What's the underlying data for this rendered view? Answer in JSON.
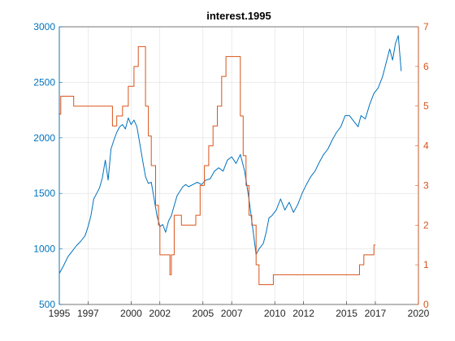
{
  "chart_data": {
    "type": "line",
    "title": "interest.1995",
    "xlabel": "",
    "grid": true,
    "x_axis": {
      "range": [
        1995,
        2020
      ],
      "ticks": [
        1995,
        1997,
        2000,
        2002,
        2005,
        2007,
        2010,
        2012,
        2015,
        2017,
        2020
      ],
      "tick_labels": [
        "1995",
        "1997",
        "2000",
        "2002",
        "2005",
        "2007",
        "2010",
        "2012",
        "2015",
        "2017",
        "2020"
      ]
    },
    "y_left": {
      "color": "#0072BD",
      "range": [
        500,
        3000
      ],
      "ticks": [
        500,
        1000,
        1500,
        2000,
        2500,
        3000
      ],
      "tick_labels": [
        "500",
        "1000",
        "1500",
        "2000",
        "2500",
        "3000"
      ]
    },
    "y_right": {
      "color": "#D95319",
      "range": [
        0,
        7
      ],
      "ticks": [
        0,
        1,
        2,
        3,
        4,
        5,
        6,
        7
      ],
      "tick_labels": [
        "0",
        "1",
        "2",
        "3",
        "4",
        "5",
        "6",
        "7"
      ]
    },
    "series": [
      {
        "axis": "left",
        "color": "#0072BD",
        "style": "line",
        "x": [
          1995.0,
          1995.3,
          1995.6,
          1995.9,
          1996.2,
          1996.5,
          1996.8,
          1997.0,
          1997.2,
          1997.4,
          1997.6,
          1997.8,
          1998.0,
          1998.2,
          1998.4,
          1998.6,
          1998.8,
          1999.0,
          1999.2,
          1999.4,
          1999.6,
          1999.8,
          2000.0,
          2000.2,
          2000.4,
          2000.6,
          2000.8,
          2001.0,
          2001.2,
          2001.4,
          2001.6,
          2001.8,
          2002.0,
          2002.2,
          2002.4,
          2002.6,
          2002.8,
          2003.0,
          2003.2,
          2003.4,
          2003.6,
          2003.8,
          2004.0,
          2004.3,
          2004.6,
          2004.9,
          2005.2,
          2005.5,
          2005.8,
          2006.1,
          2006.4,
          2006.7,
          2007.0,
          2007.3,
          2007.6,
          2007.9,
          2008.2,
          2008.5,
          2008.7,
          2008.9,
          2009.2,
          2009.4,
          2009.6,
          2009.8,
          2010.1,
          2010.4,
          2010.7,
          2011.0,
          2011.3,
          2011.6,
          2011.9,
          2012.2,
          2012.5,
          2012.8,
          2013.1,
          2013.4,
          2013.7,
          2014.0,
          2014.3,
          2014.6,
          2014.9,
          2015.2,
          2015.5,
          2015.8,
          2016.0,
          2016.3,
          2016.6,
          2016.9,
          2017.2,
          2017.5,
          2017.8,
          2018.0,
          2018.2,
          2018.4,
          2018.6,
          2018.8
        ],
        "values": [
          780,
          850,
          930,
          980,
          1030,
          1070,
          1120,
          1200,
          1300,
          1450,
          1500,
          1550,
          1640,
          1800,
          1620,
          1900,
          1980,
          2050,
          2100,
          2120,
          2080,
          2180,
          2120,
          2160,
          2100,
          1950,
          1800,
          1650,
          1590,
          1600,
          1450,
          1300,
          1200,
          1220,
          1150,
          1250,
          1300,
          1390,
          1480,
          1520,
          1560,
          1580,
          1560,
          1580,
          1600,
          1580,
          1620,
          1630,
          1700,
          1730,
          1700,
          1800,
          1830,
          1770,
          1850,
          1700,
          1450,
          1150,
          950,
          1000,
          1050,
          1150,
          1280,
          1300,
          1350,
          1450,
          1350,
          1420,
          1330,
          1400,
          1500,
          1580,
          1650,
          1700,
          1780,
          1850,
          1900,
          1980,
          2050,
          2100,
          2200,
          2200,
          2150,
          2100,
          2200,
          2170,
          2300,
          2400,
          2450,
          2550,
          2700,
          2800,
          2700,
          2850,
          2920,
          2600
        ]
      },
      {
        "axis": "right",
        "color": "#D95319",
        "style": "step",
        "x": [
          1995.0,
          1995.1,
          1996.0,
          1998.7,
          1999.0,
          1999.4,
          1999.8,
          2000.2,
          2000.5,
          2001.0,
          2001.2,
          2001.4,
          2001.7,
          2001.9,
          2002.0,
          2002.7,
          2002.8,
          2003.0,
          2003.5,
          2004.5,
          2004.8,
          2005.1,
          2005.4,
          2005.7,
          2006.0,
          2006.3,
          2006.6,
          2007.6,
          2007.8,
          2008.0,
          2008.2,
          2008.4,
          2008.7,
          2008.9,
          2009.9,
          2010.0,
          2015.9,
          2016.2,
          2016.7,
          2016.9,
          2017.0
        ],
        "values": [
          4.8,
          5.25,
          5.0,
          4.5,
          4.75,
          5.0,
          5.5,
          6.0,
          6.5,
          5.0,
          4.25,
          3.5,
          2.5,
          2.0,
          1.25,
          0.75,
          1.25,
          2.25,
          2.0,
          2.25,
          3.0,
          3.5,
          4.0,
          4.5,
          5.0,
          5.75,
          6.25,
          4.75,
          3.75,
          3.0,
          2.25,
          2.0,
          1.0,
          0.5,
          0.75,
          0.75,
          1.0,
          1.25,
          1.25,
          1.5,
          1.5
        ]
      }
    ]
  }
}
